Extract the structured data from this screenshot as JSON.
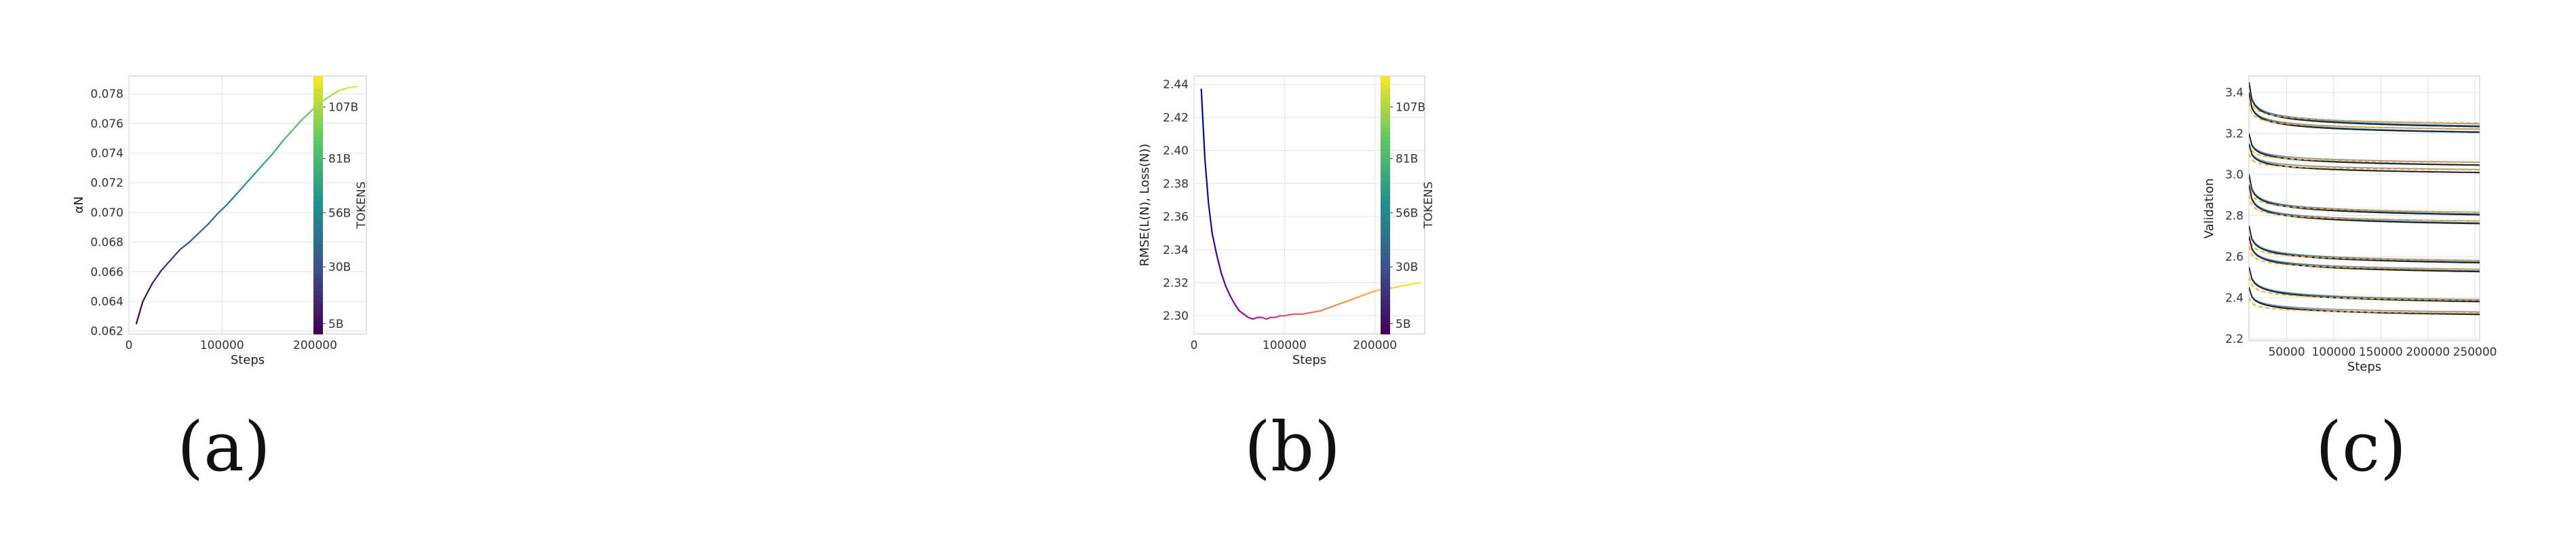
{
  "chart_data": [
    {
      "id": "a",
      "type": "line",
      "xlabel": "Steps",
      "ylabel": "αN",
      "xlim": [
        0,
        255000
      ],
      "ylim": [
        0.0618,
        0.0792
      ],
      "xticks": [
        0,
        100000,
        200000
      ],
      "xtick_labels": [
        "0",
        "100000",
        "200000"
      ],
      "yticks": [
        0.062,
        0.064,
        0.066,
        0.068,
        0.07,
        0.072,
        0.074,
        0.076,
        0.078
      ],
      "ytick_labels": [
        "0.062",
        "0.064",
        "0.066",
        "0.068",
        "0.070",
        "0.072",
        "0.074",
        "0.076",
        "0.078"
      ],
      "grid": true,
      "colormap": "viridis",
      "colorbar": {
        "label": "TOKENS",
        "ticks": [
          "5B",
          "30B",
          "56B",
          "81B",
          "107B"
        ],
        "tick_fractions": [
          0.04,
          0.26,
          0.47,
          0.68,
          0.88
        ]
      },
      "series": [
        {
          "x": [
            8000,
            15000,
            25000,
            35000,
            45000,
            55000,
            65000,
            75000,
            85000,
            95000,
            105000,
            115000,
            125000,
            135000,
            145000,
            155000,
            165000,
            175000,
            185000,
            195000,
            205000,
            215000,
            225000,
            235000,
            245000
          ],
          "y": [
            0.0625,
            0.064,
            0.0652,
            0.0661,
            0.0668,
            0.0675,
            0.068,
            0.0686,
            0.0692,
            0.0699,
            0.0705,
            0.0712,
            0.0719,
            0.0726,
            0.0733,
            0.074,
            0.0748,
            0.0755,
            0.0762,
            0.0768,
            0.0774,
            0.0778,
            0.0782,
            0.0784,
            0.0785
          ]
        }
      ],
      "caption": "(a)"
    },
    {
      "id": "b",
      "type": "line",
      "xlabel": "Steps",
      "ylabel": "RMSE(L(N), Loss(N))",
      "xlim": [
        0,
        255000
      ],
      "ylim": [
        2.289,
        2.445
      ],
      "xticks": [
        0,
        100000,
        200000
      ],
      "xtick_labels": [
        "0",
        "100000",
        "200000"
      ],
      "yticks": [
        2.3,
        2.32,
        2.34,
        2.36,
        2.38,
        2.4,
        2.42,
        2.44
      ],
      "ytick_labels": [
        "2.30",
        "2.32",
        "2.34",
        "2.36",
        "2.38",
        "2.40",
        "2.42",
        "2.44"
      ],
      "grid": true,
      "colormap": "plasma",
      "colorbar": {
        "label": "TOKENS",
        "ticks": [
          "5B",
          "30B",
          "56B",
          "81B",
          "107B"
        ],
        "tick_fractions": [
          0.04,
          0.26,
          0.47,
          0.68,
          0.88
        ]
      },
      "series": [
        {
          "x": [
            8000,
            12000,
            16000,
            20000,
            25000,
            30000,
            35000,
            40000,
            45000,
            50000,
            55000,
            60000,
            65000,
            70000,
            75000,
            80000,
            85000,
            90000,
            95000,
            100000,
            110000,
            120000,
            130000,
            140000,
            150000,
            160000,
            170000,
            180000,
            190000,
            200000,
            210000,
            220000,
            230000,
            240000,
            250000
          ],
          "y": [
            2.437,
            2.395,
            2.368,
            2.35,
            2.337,
            2.326,
            2.318,
            2.312,
            2.307,
            2.303,
            2.301,
            2.299,
            2.298,
            2.299,
            2.299,
            2.298,
            2.299,
            2.299,
            2.3,
            2.3,
            2.301,
            2.301,
            2.302,
            2.303,
            2.305,
            2.307,
            2.309,
            2.311,
            2.313,
            2.315,
            2.316,
            2.317,
            2.318,
            2.319,
            2.32
          ]
        }
      ],
      "caption": "(b)"
    },
    {
      "id": "c",
      "type": "line",
      "xlabel": "Steps",
      "ylabel": "Validation",
      "xlim": [
        10000,
        255000
      ],
      "ylim": [
        2.19,
        3.48
      ],
      "xticks": [
        50000,
        100000,
        150000,
        200000,
        250000
      ],
      "xtick_labels": [
        "50000",
        "100000",
        "150000",
        "200000",
        "250000"
      ],
      "yticks": [
        2.2,
        2.4,
        2.6,
        2.8,
        3.0,
        3.2,
        3.4
      ],
      "ytick_labels": [
        "2.2",
        "2.4",
        "2.6",
        "2.8",
        "3.0",
        "3.2",
        "3.4"
      ],
      "grid": true,
      "groups": [
        {
          "start": 3.45,
          "end": 3.16,
          "k": 0.25
        },
        {
          "start": 3.4,
          "end": 3.14,
          "k": 0.25
        },
        {
          "start": 3.2,
          "end": 2.98,
          "k": 0.22
        },
        {
          "start": 3.15,
          "end": 2.95,
          "k": 0.22
        },
        {
          "start": 3.0,
          "end": 2.72,
          "k": 0.22
        },
        {
          "start": 2.95,
          "end": 2.68,
          "k": 0.22
        },
        {
          "start": 2.75,
          "end": 2.48,
          "k": 0.2
        },
        {
          "start": 2.7,
          "end": 2.44,
          "k": 0.2
        },
        {
          "start": 2.55,
          "end": 2.28,
          "k": 0.18
        },
        {
          "start": 2.45,
          "end": 2.24,
          "k": 0.18
        }
      ],
      "colors": {
        "fit": "#1f1f1f",
        "model": "#2b7bba",
        "alt": "#8c8c8c",
        "dashed": "#f5a623"
      },
      "caption": "(c)"
    }
  ]
}
